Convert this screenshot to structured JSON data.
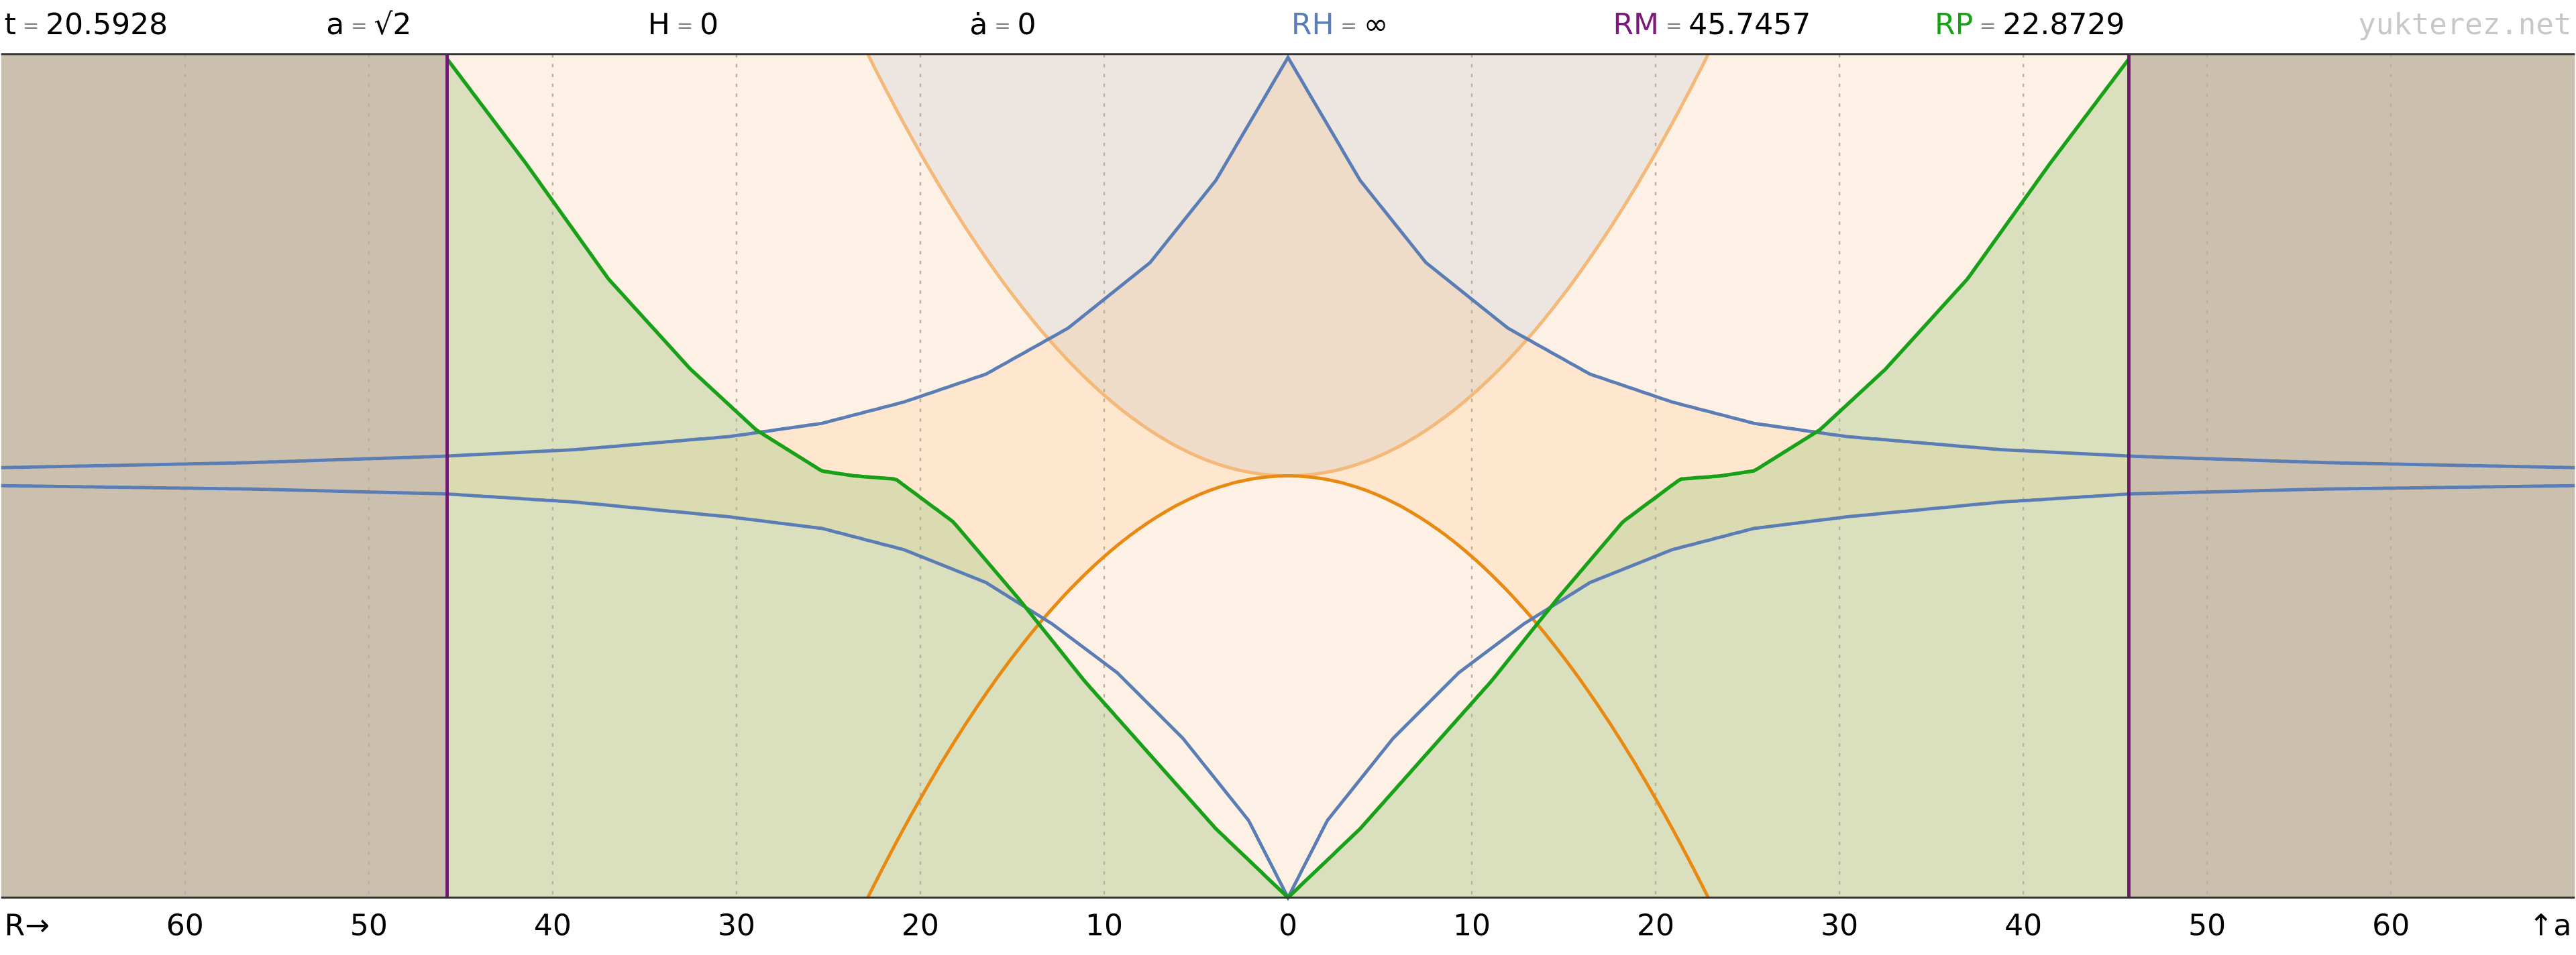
{
  "header": {
    "equals": "=",
    "items": [
      {
        "label": "t",
        "value": "20.5928",
        "color": "#000000"
      },
      {
        "label": "a",
        "value": "√2",
        "color": "#000000"
      },
      {
        "label": "H",
        "value": "0",
        "color": "#000000"
      },
      {
        "label": "ȧ",
        "value": "0",
        "color": "#000000"
      },
      {
        "label": "RH",
        "value": "∞",
        "color": "#5a7db5"
      },
      {
        "label": "RM",
        "value": "45.7457",
        "color": "#7a1a7a"
      },
      {
        "label": "RP",
        "value": "22.8729",
        "color": "#18a018"
      }
    ],
    "watermark": "yukterez.net"
  },
  "axis": {
    "left_label": "R→",
    "right_label": "↑a",
    "ticks": [
      60,
      50,
      40,
      30,
      20,
      10,
      0,
      10,
      20,
      30,
      40,
      50,
      60
    ]
  }
}
